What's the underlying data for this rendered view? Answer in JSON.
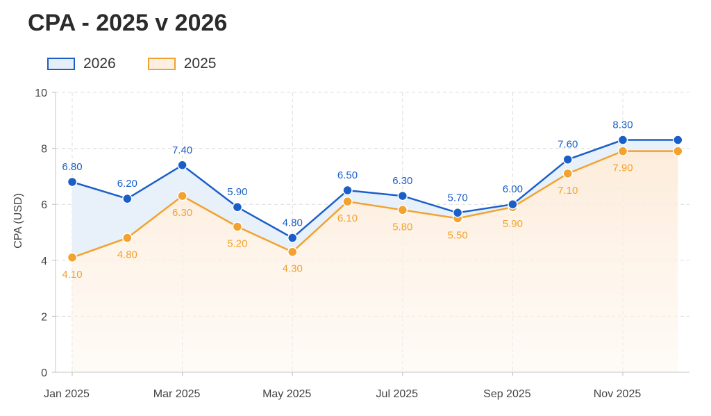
{
  "chart_data": {
    "type": "line",
    "title": "CPA - 2025 v 2026",
    "ylabel": "CPA (USD)",
    "xlabel": "",
    "ylim": [
      0,
      10
    ],
    "yticks": [
      0,
      2,
      4,
      6,
      8,
      10
    ],
    "x": [
      "Jan 2025",
      "Feb 2025",
      "Mar 2025",
      "Apr 2025",
      "May 2025",
      "Jun 2025",
      "Jul 2025",
      "Aug 2025",
      "Sep 2025",
      "Oct 2025",
      "Nov 2025",
      "Dec 2025"
    ],
    "xticks": [
      "Jan 2025",
      "Mar 2025",
      "May 2025",
      "Jul 2025",
      "Sep 2025",
      "Nov 2025"
    ],
    "grid": true,
    "legend": "top-left",
    "series": [
      {
        "name": "2026",
        "color": "#1a5fc8",
        "fill": "#e6eef9",
        "values": [
          6.8,
          6.2,
          7.4,
          5.9,
          4.8,
          6.5,
          6.3,
          5.7,
          6.0,
          7.6,
          8.3,
          8.3
        ],
        "labels": [
          "6.80",
          "6.20",
          "7.40",
          "5.90",
          "4.80",
          "6.50",
          "6.30",
          "5.70",
          "6.00",
          "7.60",
          "8.30",
          ""
        ]
      },
      {
        "name": "2025",
        "color": "#f2a22e",
        "fill": "#fdf0e2",
        "values": [
          4.1,
          4.8,
          6.3,
          5.2,
          4.3,
          6.1,
          5.8,
          5.5,
          5.9,
          7.1,
          7.9,
          7.9
        ],
        "labels": [
          "4.10",
          "4.80",
          "6.30",
          "5.20",
          "4.30",
          "6.10",
          "5.80",
          "5.50",
          "5.90",
          "7.10",
          "7.90",
          ""
        ]
      }
    ]
  }
}
